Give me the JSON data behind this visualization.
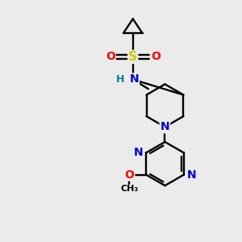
{
  "background_color": "#ebebeb",
  "atom_colors": {
    "C": "#000000",
    "N": "#0000cc",
    "O": "#ff0000",
    "S": "#cccc00",
    "H": "#008080"
  },
  "figsize": [
    3.0,
    3.0
  ],
  "dpi": 100
}
